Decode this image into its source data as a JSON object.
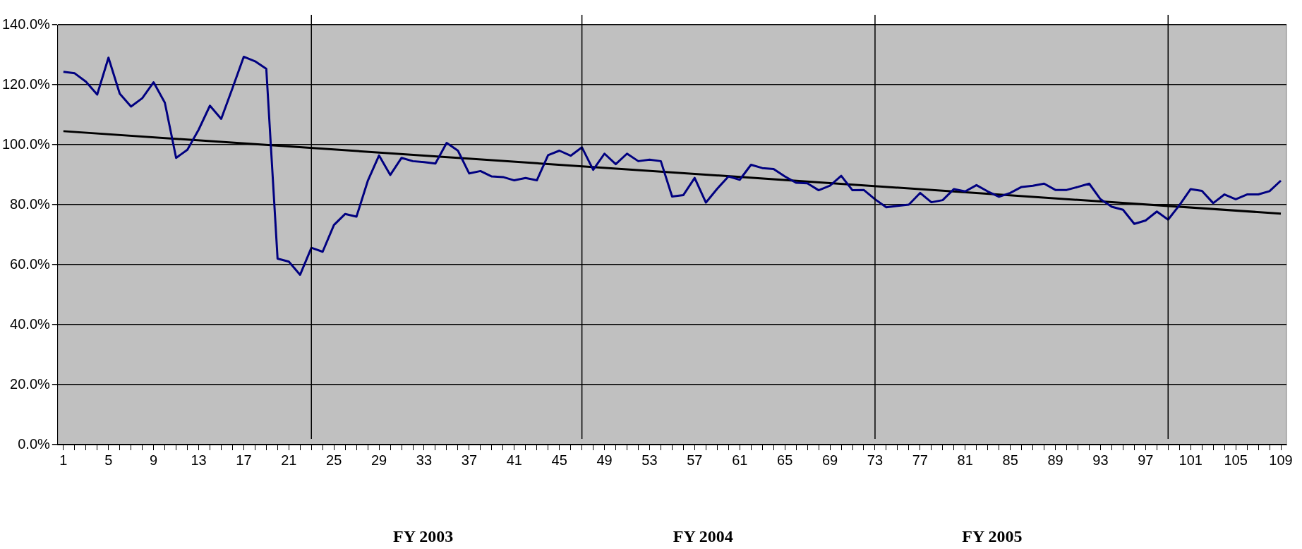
{
  "chart_data": {
    "type": "line",
    "x": [
      1,
      2,
      3,
      4,
      5,
      6,
      7,
      8,
      9,
      10,
      11,
      12,
      13,
      14,
      15,
      16,
      17,
      18,
      19,
      20,
      21,
      22,
      23,
      24,
      25,
      26,
      27,
      28,
      29,
      30,
      31,
      32,
      33,
      34,
      35,
      36,
      37,
      38,
      39,
      40,
      41,
      42,
      43,
      44,
      45,
      46,
      47,
      48,
      49,
      50,
      51,
      52,
      53,
      54,
      55,
      56,
      57,
      58,
      59,
      60,
      61,
      62,
      63,
      64,
      65,
      66,
      67,
      68,
      69,
      70,
      71,
      72,
      73,
      74,
      75,
      76,
      77,
      78,
      79,
      80,
      81,
      82,
      83,
      84,
      85,
      86,
      87,
      88,
      89,
      90,
      91,
      92,
      93,
      94,
      95,
      96,
      97,
      98,
      99,
      100,
      101,
      102,
      103,
      104,
      105,
      106,
      107,
      108,
      109
    ],
    "series": [
      {
        "color": "#000080",
        "values": [
          124.3,
          123.8,
          121,
          116.7,
          129,
          117,
          112.7,
          115.5,
          120.8,
          114,
          95.6,
          98.3,
          105,
          113,
          108.6,
          118.8,
          129.3,
          127.8,
          125.3,
          62,
          61,
          56.6,
          65.6,
          64.3,
          73.2,
          76.9,
          76,
          87.9,
          96.4,
          89.9,
          95.6,
          94.5,
          94.2,
          93.7,
          100.6,
          98,
          90.4,
          91.2,
          89.4,
          89.2,
          88.1,
          88.9,
          88.1,
          96.5,
          98,
          96.3,
          99.1,
          91.6,
          97,
          93.5,
          97,
          94.5,
          95,
          94.5,
          82.7,
          83.2,
          88.9,
          80.7,
          85.3,
          89.4,
          88.3,
          93.3,
          92.2,
          91.9,
          89.4,
          87.3,
          87.1,
          84.8,
          86.3,
          89.6,
          84.8,
          84.9,
          81.8,
          79.1,
          79.6,
          80,
          83.9,
          80.8,
          81.5,
          85.2,
          84.4,
          86.5,
          84.4,
          82.6,
          83.9,
          85.9,
          86.3,
          87,
          84.9,
          84.9,
          85.9,
          87,
          81.8,
          79.3,
          78.3,
          73.6,
          74.7,
          77.7,
          75,
          79.8,
          85.2,
          84.6,
          80.5,
          83.4,
          81.8,
          83.4,
          83.4,
          84.5,
          88
        ]
      },
      {
        "type": "line",
        "color": "#000000",
        "x": [
          1,
          109
        ],
        "values": [
          104.5,
          77
        ]
      }
    ],
    "xlim": [
      0.5,
      109.5
    ],
    "xticks": [
      1,
      {
        "value": 2,
        "label": null
      },
      {
        "value": 3,
        "label": null
      },
      {
        "value": 4,
        "label": null
      },
      5,
      {
        "value": 6,
        "label": null
      },
      {
        "value": 7,
        "label": null
      },
      {
        "value": 8,
        "label": null
      },
      9,
      {
        "value": 10,
        "label": null
      },
      {
        "value": 11,
        "label": null
      },
      {
        "value": 12,
        "label": null
      },
      13,
      {
        "value": 14,
        "label": null
      },
      {
        "value": 15,
        "label": null
      },
      {
        "value": 16,
        "label": null
      },
      17,
      {
        "value": 18,
        "label": null
      },
      {
        "value": 19,
        "label": null
      },
      {
        "value": 20,
        "label": null
      },
      21,
      {
        "value": 22,
        "label": null
      },
      {
        "value": 23,
        "label": null
      },
      {
        "value": 24,
        "label": null
      },
      25,
      {
        "value": 26,
        "label": null
      },
      {
        "value": 27,
        "label": null
      },
      {
        "value": 28,
        "label": null
      },
      29,
      {
        "value": 30,
        "label": null
      },
      {
        "value": 31,
        "label": null
      },
      {
        "value": 32,
        "label": null
      },
      33,
      {
        "value": 34,
        "label": null
      },
      {
        "value": 35,
        "label": null
      },
      {
        "value": 36,
        "label": null
      },
      37,
      {
        "value": 38,
        "label": null
      },
      {
        "value": 39,
        "label": null
      },
      {
        "value": 40,
        "label": null
      },
      41,
      {
        "value": 42,
        "label": null
      },
      {
        "value": 43,
        "label": null
      },
      {
        "value": 44,
        "label": null
      },
      45,
      {
        "value": 46,
        "label": null
      },
      {
        "value": 47,
        "label": null
      },
      {
        "value": 48,
        "label": null
      },
      49,
      {
        "value": 50,
        "label": null
      },
      {
        "value": 51,
        "label": null
      },
      {
        "value": 52,
        "label": null
      },
      53,
      {
        "value": 54,
        "label": null
      },
      {
        "value": 55,
        "label": null
      },
      {
        "value": 56,
        "label": null
      },
      57,
      {
        "value": 58,
        "label": null
      },
      {
        "value": 59,
        "label": null
      },
      {
        "value": 60,
        "label": null
      },
      61,
      {
        "value": 62,
        "label": null
      },
      {
        "value": 63,
        "label": null
      },
      {
        "value": 64,
        "label": null
      },
      65,
      {
        "value": 66,
        "label": null
      },
      {
        "value": 67,
        "label": null
      },
      {
        "value": 68,
        "label": null
      },
      69,
      {
        "value": 70,
        "label": null
      },
      {
        "value": 71,
        "label": null
      },
      {
        "value": 72,
        "label": null
      },
      73,
      {
        "value": 74,
        "label": null
      },
      {
        "value": 75,
        "label": null
      },
      {
        "value": 76,
        "label": null
      },
      77,
      {
        "value": 78,
        "label": null
      },
      {
        "value": 79,
        "label": null
      },
      {
        "value": 80,
        "label": null
      },
      81,
      {
        "value": 82,
        "label": null
      },
      {
        "value": 83,
        "label": null
      },
      {
        "value": 84,
        "label": null
      },
      85,
      {
        "value": 86,
        "label": null
      },
      {
        "value": 87,
        "label": null
      },
      {
        "value": 88,
        "label": null
      },
      89,
      {
        "value": 90,
        "label": null
      },
      {
        "value": 91,
        "label": null
      },
      {
        "value": 92,
        "label": null
      },
      93,
      {
        "value": 94,
        "label": null
      },
      {
        "value": 95,
        "label": null
      },
      {
        "value": 96,
        "label": null
      },
      97,
      {
        "value": 98,
        "label": null
      },
      {
        "value": 99,
        "label": null
      },
      {
        "value": 100,
        "label": null
      },
      101,
      {
        "value": 102,
        "label": null
      },
      {
        "value": 103,
        "label": null
      },
      {
        "value": 104,
        "label": null
      },
      105,
      {
        "value": 106,
        "label": null
      },
      {
        "value": 107,
        "label": null
      },
      {
        "value": 108,
        "label": null
      },
      109
    ],
    "ylim": [
      0,
      140
    ],
    "yticks": [
      {
        "value": 0,
        "label": "0.0%"
      },
      {
        "value": 20,
        "label": "20.0%"
      },
      {
        "value": 40,
        "label": "40.0%"
      },
      {
        "value": 60,
        "label": "60.0%"
      },
      {
        "value": 80,
        "label": "80.0%"
      },
      {
        "value": 100,
        "label": "100.0%"
      },
      {
        "value": 120,
        "label": "120.0%"
      },
      {
        "value": 140,
        "label": "140.0%"
      }
    ],
    "grid": "y",
    "legend": false,
    "ref_lines": [
      {
        "axis": "x",
        "value": 23,
        "color": "#000000"
      },
      {
        "axis": "x",
        "value": 47,
        "color": "#000000"
      },
      {
        "axis": "x",
        "value": 73,
        "color": "#000000"
      },
      {
        "axis": "x",
        "value": 99,
        "color": "#000000"
      }
    ],
    "annotations": [
      "FY 2003",
      "FY 2004",
      "FY 2005"
    ]
  }
}
